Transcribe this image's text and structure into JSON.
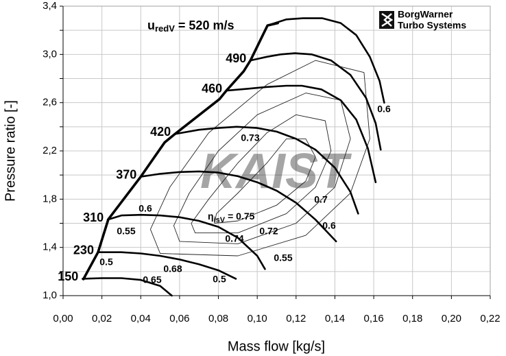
{
  "chart_data": {
    "type": "line",
    "speed_title": {
      "symbol": "u",
      "subscript": "redV",
      "text": "= 520 m/s"
    },
    "xlabel": "Mass flow [kg/s]",
    "ylabel": "Pressure ratio [-]",
    "xlim": [
      0,
      0.22
    ],
    "xticks": [
      {
        "value": 0,
        "label": "0,00"
      },
      {
        "value": 0.02,
        "label": "0,02"
      },
      {
        "value": 0.04,
        "label": "0,04"
      },
      {
        "value": 0.06,
        "label": "0,06"
      },
      {
        "value": 0.08,
        "label": "0,08"
      },
      {
        "value": 0.1,
        "label": "0,10"
      },
      {
        "value": 0.12,
        "label": "0,12"
      },
      {
        "value": 0.14,
        "label": "0,14"
      },
      {
        "value": 0.16,
        "label": "0,16"
      },
      {
        "value": 0.18,
        "label": "0,18"
      },
      {
        "value": 0.2,
        "label": "0,20"
      },
      {
        "value": 0.22,
        "label": "0,22"
      }
    ],
    "ylim": [
      1.0,
      3.4
    ],
    "yticks": [
      {
        "value": 1.0,
        "label": "1,0"
      },
      {
        "value": 1.4,
        "label": "1,4"
      },
      {
        "value": 1.8,
        "label": "1,8"
      },
      {
        "value": 2.2,
        "label": "2,2"
      },
      {
        "value": 2.6,
        "label": "2,6"
      },
      {
        "value": 3.0,
        "label": "3,0"
      },
      {
        "value": 3.4,
        "label": "3,4"
      }
    ],
    "yminor": [
      1.2,
      1.6,
      2.0,
      2.4,
      2.8,
      3.2
    ],
    "grid": true,
    "series": [
      {
        "name": "150",
        "color": "#000000",
        "x": [
          0.01,
          0.02,
          0.03,
          0.04,
          0.05,
          0.056
        ],
        "values": [
          1.14,
          1.145,
          1.145,
          1.13,
          1.08,
          1.0
        ]
      },
      {
        "name": "230",
        "color": "#000000",
        "x": [
          0.018,
          0.03,
          0.04,
          0.05,
          0.06,
          0.07,
          0.08,
          0.089
        ],
        "values": [
          1.36,
          1.36,
          1.35,
          1.33,
          1.3,
          1.26,
          1.21,
          1.14
        ]
      },
      {
        "name": "310",
        "color": "#000000",
        "x": [
          0.023,
          0.03,
          0.04,
          0.05,
          0.06,
          0.07,
          0.08,
          0.09,
          0.1,
          0.104
        ],
        "values": [
          1.63,
          1.665,
          1.67,
          1.665,
          1.65,
          1.62,
          1.57,
          1.48,
          1.33,
          1.22
        ]
      },
      {
        "name": "370",
        "color": "#000000",
        "x": [
          0.04,
          0.05,
          0.06,
          0.07,
          0.08,
          0.09,
          0.1,
          0.11,
          0.12,
          0.13,
          0.1406
        ],
        "values": [
          1.986,
          2.01,
          2.025,
          2.03,
          2.02,
          1.99,
          1.94,
          1.87,
          1.77,
          1.63,
          1.45
        ]
      },
      {
        "name": "420",
        "color": "#000000",
        "x": [
          0.0576,
          0.07,
          0.08,
          0.0894,
          0.1,
          0.11,
          0.12,
          0.13,
          0.14,
          0.148,
          0.152
        ],
        "values": [
          2.34,
          2.375,
          2.39,
          2.4,
          2.39,
          2.36,
          2.3,
          2.21,
          2.06,
          1.86,
          1.68
        ]
      },
      {
        "name": "460",
        "color": "#000000",
        "x": [
          0.0841,
          0.095,
          0.105,
          0.115,
          0.123,
          0.133,
          0.143,
          0.151,
          0.157,
          0.161
        ],
        "values": [
          2.7,
          2.715,
          2.73,
          2.74,
          2.74,
          2.71,
          2.62,
          2.46,
          2.22,
          1.94
        ]
      },
      {
        "name": "490",
        "color": "#000000",
        "x": [
          0.0965,
          0.105,
          0.112,
          0.1194,
          0.128,
          0.138,
          0.148,
          0.156,
          0.161,
          0.1636
        ],
        "values": [
          2.95,
          2.98,
          3.0,
          3.01,
          3.0,
          2.95,
          2.83,
          2.64,
          2.43,
          2.21
        ]
      },
      {
        "color": "#000000",
        "x": [
          0.1053,
          0.115,
          0.1236,
          0.1336,
          0.143,
          0.151,
          0.158,
          0.163,
          0.1654
        ],
        "values": [
          3.24,
          3.29,
          3.3,
          3.3,
          3.26,
          3.16,
          2.98,
          2.78,
          2.6
        ]
      }
    ],
    "surge_line": {
      "color": "#000000",
      "x": [
        0.0105,
        0.018,
        0.0233,
        0.04,
        0.0523,
        0.0576,
        0.0806,
        0.0841,
        0.093,
        0.0965,
        0.1053,
        0.1106
      ],
      "values": [
        1.137,
        1.36,
        1.633,
        1.986,
        2.27,
        2.34,
        2.63,
        2.7,
        2.86,
        2.95,
        3.24,
        3.26
      ]
    },
    "efficiency_contours": [
      {
        "x": [
          0.078,
          0.09,
          0.11,
          0.125,
          0.13,
          0.125,
          0.115,
          0.105,
          0.09,
          0.079
        ],
        "values": [
          1.6,
          1.62,
          1.75,
          1.95,
          2.15,
          2.3,
          2.3,
          2.1,
          1.85,
          1.68
        ]
      },
      {
        "x": [
          0.068,
          0.09,
          0.115,
          0.13,
          0.138,
          0.135,
          0.12,
          0.105,
          0.09,
          0.075,
          0.066
        ],
        "values": [
          1.52,
          1.52,
          1.68,
          1.9,
          2.2,
          2.45,
          2.5,
          2.35,
          2.1,
          1.8,
          1.6
        ]
      },
      {
        "x": [
          0.06,
          0.09,
          0.12,
          0.14,
          0.148,
          0.143,
          0.125,
          0.1,
          0.08,
          0.065,
          0.057
        ],
        "values": [
          1.45,
          1.43,
          1.6,
          1.9,
          2.3,
          2.62,
          2.68,
          2.5,
          2.2,
          1.85,
          1.58
        ]
      },
      {
        "x": [
          0.05,
          0.09,
          0.125,
          0.148,
          0.158,
          0.155,
          0.13,
          0.105,
          0.075,
          0.055,
          0.045
        ],
        "values": [
          1.35,
          1.33,
          1.5,
          1.85,
          2.3,
          2.85,
          2.95,
          2.75,
          2.35,
          1.9,
          1.55
        ]
      }
    ],
    "efficiency_labels": [
      0.5,
      0.55,
      0.6,
      0.65,
      0.68,
      0.5,
      0.55,
      0.74,
      0.72,
      0.6,
      0.7,
      0.73,
      0.6
    ],
    "eta_label": {
      "symbol": "η",
      "subscript": "isV",
      "text": "= 0.75"
    },
    "watermark": "KAIST",
    "logo": [
      "BorgWarner",
      "Turbo Systems"
    ]
  }
}
